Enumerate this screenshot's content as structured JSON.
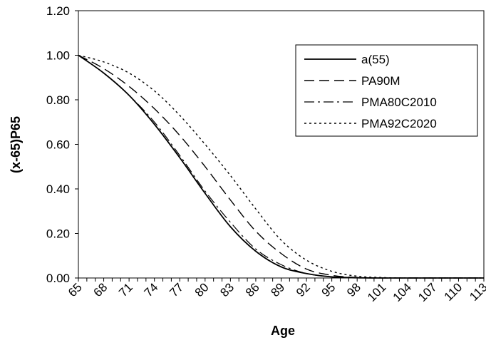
{
  "chart_data": {
    "type": "line",
    "title": "",
    "xlabel": "Age",
    "ylabel": "(x-65)P65",
    "xlim": [
      65,
      113
    ],
    "ylim": [
      0,
      1.2
    ],
    "y_ticks": [
      "0.00",
      "0.20",
      "0.40",
      "0.60",
      "0.80",
      "1.00",
      "1.20"
    ],
    "x_tick_labels": [
      "65",
      "68",
      "71",
      "74",
      "77",
      "80",
      "83",
      "86",
      "89",
      "92",
      "95",
      "98",
      "101",
      "104",
      "107",
      "110",
      "113"
    ],
    "grid": false,
    "legend_position": "top-right",
    "x": [
      65,
      68,
      71,
      74,
      77,
      80,
      83,
      86,
      89,
      92,
      95,
      98,
      101,
      104,
      107,
      110,
      113
    ],
    "series": [
      {
        "name": "a(55)",
        "style": "solid",
        "color": "#000000",
        "values": [
          1.0,
          0.92,
          0.82,
          0.69,
          0.54,
          0.38,
          0.23,
          0.12,
          0.05,
          0.02,
          0.005,
          0.001,
          0.0,
          0.0,
          0.0,
          0.0,
          0.0
        ]
      },
      {
        "name": "PA90M",
        "style": "dashed",
        "color": "#000000",
        "values": [
          1.0,
          0.94,
          0.86,
          0.76,
          0.64,
          0.5,
          0.35,
          0.21,
          0.11,
          0.04,
          0.012,
          0.002,
          0.0,
          0.0,
          0.0,
          0.0,
          0.0
        ]
      },
      {
        "name": "PMA80C2010",
        "style": "dashdot",
        "color": "#000000",
        "values": [
          1.0,
          0.92,
          0.82,
          0.7,
          0.55,
          0.39,
          0.25,
          0.13,
          0.06,
          0.02,
          0.005,
          0.001,
          0.0,
          0.0,
          0.0,
          0.0,
          0.0
        ]
      },
      {
        "name": "PMA92C2020",
        "style": "dotted",
        "color": "#000000",
        "values": [
          1.0,
          0.97,
          0.92,
          0.84,
          0.73,
          0.6,
          0.46,
          0.31,
          0.17,
          0.08,
          0.03,
          0.008,
          0.002,
          0.0,
          0.0,
          0.0,
          0.0
        ]
      }
    ]
  }
}
